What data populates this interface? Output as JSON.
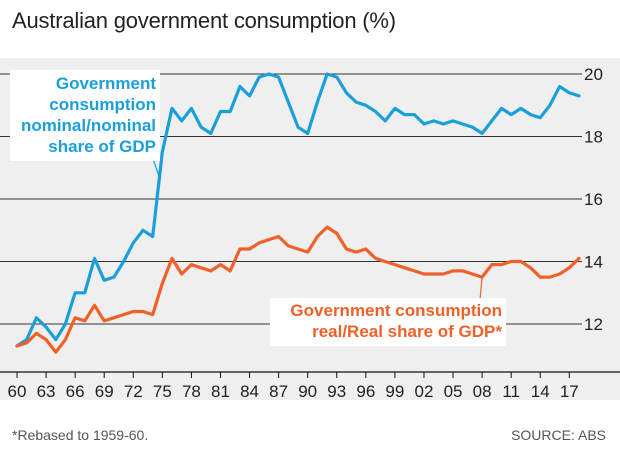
{
  "title": "Australian government consumption (%)",
  "footnote": "*Rebased to 1959-60.",
  "source": "SOURCE: ABS",
  "colors": {
    "nominal": "#1a9fdb",
    "real": "#ef6128",
    "grid": "#333333",
    "background": "#efefef"
  },
  "chart_data": {
    "type": "line",
    "title": "Australian government consumption (%)",
    "xlabel": "",
    "ylabel": "",
    "xlim": [
      1960,
      2018
    ],
    "ylim": [
      10.5,
      20.5
    ],
    "y_ticks": [
      12,
      14,
      16,
      18,
      20
    ],
    "y_axis_position": "right",
    "x_ticks": [
      1960,
      1963,
      1966,
      1969,
      1972,
      1975,
      1978,
      1981,
      1984,
      1987,
      1990,
      1993,
      1996,
      1999,
      2002,
      2005,
      2008,
      2011,
      2014,
      2017
    ],
    "x_tick_labels": [
      "60",
      "63",
      "66",
      "69",
      "72",
      "75",
      "78",
      "81",
      "84",
      "87",
      "90",
      "93",
      "96",
      "99",
      "02",
      "05",
      "08",
      "11",
      "14",
      "17"
    ],
    "grid": "horizontal",
    "series": [
      {
        "name": "Government consumption nominal/nominal share of GDP",
        "label_lines": [
          "Government",
          "consumption",
          "nominal/nominal",
          "share of GDP"
        ],
        "x": [
          1960,
          1961,
          1962,
          1963,
          1964,
          1965,
          1966,
          1967,
          1968,
          1969,
          1970,
          1971,
          1972,
          1973,
          1974,
          1975,
          1976,
          1977,
          1978,
          1979,
          1980,
          1981,
          1982,
          1983,
          1984,
          1985,
          1986,
          1987,
          1988,
          1989,
          1990,
          1991,
          1992,
          1993,
          1994,
          1995,
          1996,
          1997,
          1998,
          1999,
          2000,
          2001,
          2002,
          2003,
          2004,
          2005,
          2006,
          2007,
          2008,
          2009,
          2010,
          2011,
          2012,
          2013,
          2014,
          2015,
          2016,
          2017,
          2018
        ],
        "values": [
          11.3,
          11.5,
          12.2,
          11.9,
          11.5,
          12.0,
          13.0,
          13.0,
          14.1,
          13.4,
          13.5,
          14.0,
          14.6,
          15.0,
          14.8,
          17.5,
          18.9,
          18.5,
          18.9,
          18.3,
          18.1,
          18.8,
          18.8,
          19.6,
          19.3,
          19.9,
          20.0,
          19.9,
          19.1,
          18.3,
          18.1,
          19.1,
          20.0,
          19.9,
          19.4,
          19.1,
          19.0,
          18.8,
          18.5,
          18.9,
          18.7,
          18.7,
          18.4,
          18.5,
          18.4,
          18.5,
          18.4,
          18.3,
          18.1,
          18.5,
          18.9,
          18.7,
          18.9,
          18.7,
          18.6,
          19.0,
          19.6,
          19.4,
          19.3
        ]
      },
      {
        "name": "Government consumption real/Real share of GDP*",
        "label_lines": [
          "Government consumption",
          "real/Real share of GDP*"
        ],
        "x": [
          1960,
          1961,
          1962,
          1963,
          1964,
          1965,
          1966,
          1967,
          1968,
          1969,
          1970,
          1971,
          1972,
          1973,
          1974,
          1975,
          1976,
          1977,
          1978,
          1979,
          1980,
          1981,
          1982,
          1983,
          1984,
          1985,
          1986,
          1987,
          1988,
          1989,
          1990,
          1991,
          1992,
          1993,
          1994,
          1995,
          1996,
          1997,
          1998,
          1999,
          2000,
          2001,
          2002,
          2003,
          2004,
          2005,
          2006,
          2007,
          2008,
          2009,
          2010,
          2011,
          2012,
          2013,
          2014,
          2015,
          2016,
          2017,
          2018
        ],
        "values": [
          11.3,
          11.4,
          11.7,
          11.5,
          11.1,
          11.5,
          12.2,
          12.1,
          12.6,
          12.1,
          12.2,
          12.3,
          12.4,
          12.4,
          12.3,
          13.3,
          14.1,
          13.6,
          13.9,
          13.8,
          13.7,
          13.9,
          13.7,
          14.4,
          14.4,
          14.6,
          14.7,
          14.8,
          14.5,
          14.4,
          14.3,
          14.8,
          15.1,
          14.9,
          14.4,
          14.3,
          14.4,
          14.1,
          14.0,
          13.9,
          13.8,
          13.7,
          13.6,
          13.6,
          13.6,
          13.7,
          13.7,
          13.6,
          13.5,
          13.9,
          13.9,
          14.0,
          14.0,
          13.8,
          13.5,
          13.5,
          13.6,
          13.8,
          14.1
        ]
      }
    ]
  }
}
